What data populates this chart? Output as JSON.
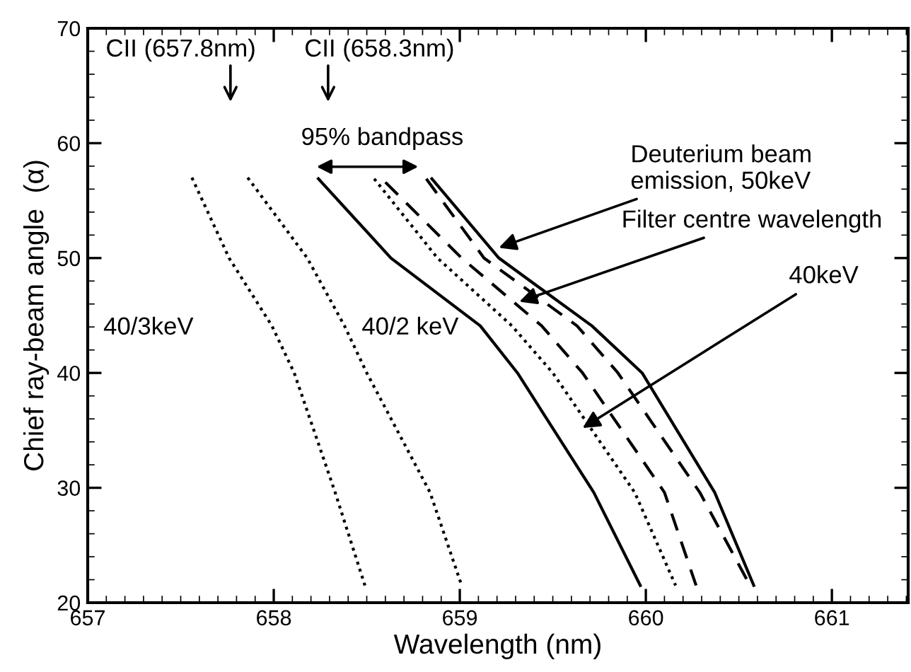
{
  "chart_data": {
    "type": "line",
    "xlabel": "Wavelength (nm)",
    "ylabel": "Chief ray-beam angle  (α)",
    "xlim": [
      657,
      661.41
    ],
    "xticks": [
      657,
      658,
      659,
      660,
      661
    ],
    "ylim": [
      20,
      70
    ],
    "yticks": [
      20,
      30,
      40,
      50,
      60,
      70
    ],
    "grid": false,
    "legend": false,
    "series": [
      {
        "color": "#000000",
        "line_style": "dotted",
        "x": [
          657.56,
          657.76,
          657.99,
          658.11,
          658.33,
          658.49
        ],
        "values": [
          57.0,
          50.0,
          44.1,
          40.0,
          29.6,
          21.5
        ]
      },
      {
        "color": "#000000",
        "line_style": "dotted",
        "x": [
          657.86,
          658.18,
          658.38,
          658.5,
          658.84,
          659.01
        ],
        "values": [
          57.0,
          50.0,
          44.1,
          40.0,
          29.6,
          21.5
        ]
      },
      {
        "color": "#000000",
        "line_style": "solid",
        "x": [
          658.24,
          658.63,
          659.11,
          659.31,
          659.72,
          659.97
        ],
        "values": [
          56.9,
          50.0,
          44.1,
          40.0,
          29.6,
          21.5
        ]
      },
      {
        "color": "#000000",
        "line_style": "dotted",
        "x": [
          658.54,
          658.88,
          659.28,
          659.5,
          659.94,
          660.16
        ],
        "values": [
          56.9,
          50.0,
          44.1,
          40.0,
          29.6,
          21.5
        ]
      },
      {
        "color": "#000000",
        "line_style": "dashed",
        "x": [
          658.6,
          659.01,
          659.44,
          659.66,
          660.1,
          660.27
        ],
        "values": [
          56.6,
          50.0,
          44.1,
          40.0,
          29.6,
          21.5
        ]
      },
      {
        "color": "#000000",
        "line_style": "dashed",
        "x": [
          658.82,
          659.13,
          659.63,
          659.85,
          660.29,
          660.56
        ],
        "values": [
          56.9,
          50.0,
          44.1,
          40.0,
          29.6,
          21.5
        ]
      },
      {
        "color": "#000000",
        "line_style": "solid",
        "x": [
          658.85,
          659.21,
          659.71,
          659.98,
          660.37,
          660.58
        ],
        "values": [
          56.9,
          50.0,
          44.1,
          40.0,
          29.6,
          21.5
        ]
      }
    ],
    "annotations": [
      "CII (657.8nm)",
      "CII (658.3nm)",
      {
        "text": "Deuterium beam\nemission, 50keV",
        "x": 659.21,
        "y": 50.9
      },
      {
        "text": "Filter centre wavelength",
        "x": 659.32,
        "y": 46.2
      },
      {
        "text": "40keV",
        "x": 659.66,
        "y": 35.2
      },
      "40/3keV",
      "40/2 keV",
      "95% bandpass"
    ]
  }
}
